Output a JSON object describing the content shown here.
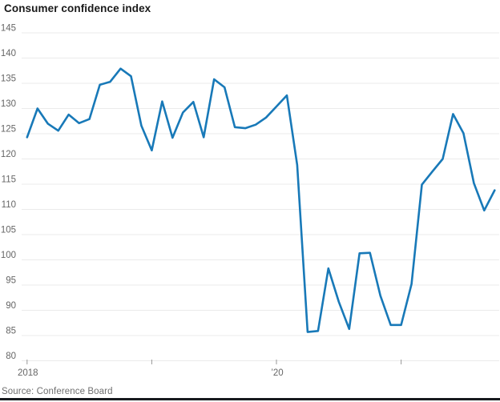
{
  "title": "Consumer confidence index",
  "source": "Source: Conference Board",
  "colors": {
    "line": "#1879b8",
    "grid": "#ebebeb",
    "axis_text": "#666666",
    "tick_mark": "#999999",
    "title_text": "#191919",
    "source_text": "#6f6f6f",
    "footer_bar": "#171a1e"
  },
  "chart_data": {
    "type": "line",
    "title": "Consumer confidence index",
    "xlabel": "",
    "ylabel": "",
    "x_unit": "month",
    "x": [
      "2018-01",
      "2018-02",
      "2018-03",
      "2018-04",
      "2018-05",
      "2018-06",
      "2018-07",
      "2018-08",
      "2018-09",
      "2018-10",
      "2018-11",
      "2018-12",
      "2019-01",
      "2019-02",
      "2019-03",
      "2019-04",
      "2019-05",
      "2019-06",
      "2019-07",
      "2019-08",
      "2019-09",
      "2019-10",
      "2019-11",
      "2019-12",
      "2020-01",
      "2020-02",
      "2020-03",
      "2020-04",
      "2020-05",
      "2020-06",
      "2020-07",
      "2020-08",
      "2020-09",
      "2020-10",
      "2020-11",
      "2020-12",
      "2021-01",
      "2021-02",
      "2021-03",
      "2021-04",
      "2021-05",
      "2021-06",
      "2021-07",
      "2021-08",
      "2021-09",
      "2021-10"
    ],
    "values": [
      124.3,
      130.0,
      127.0,
      125.6,
      128.8,
      127.1,
      127.9,
      134.7,
      135.3,
      137.9,
      136.4,
      126.6,
      121.7,
      131.4,
      124.2,
      129.2,
      131.3,
      124.3,
      135.8,
      134.2,
      126.3,
      126.1,
      126.8,
      128.2,
      130.4,
      132.6,
      118.8,
      85.7,
      85.9,
      98.3,
      91.7,
      86.3,
      101.3,
      101.4,
      92.9,
      87.1,
      87.1,
      95.2,
      114.9,
      117.5,
      120.0,
      128.9,
      125.1,
      115.2,
      109.8,
      113.8
    ],
    "ylim": [
      80,
      145
    ],
    "yticks": [
      80,
      85,
      90,
      95,
      100,
      105,
      110,
      115,
      120,
      125,
      130,
      135,
      140,
      145
    ],
    "xticks": [
      {
        "x": "2018-01",
        "label": "2018"
      },
      {
        "x": "2019-01",
        "label": ""
      },
      {
        "x": "2020-01",
        "label": "’20"
      },
      {
        "x": "2021-01",
        "label": ""
      }
    ],
    "grid": "horizontal",
    "legend": "none"
  }
}
